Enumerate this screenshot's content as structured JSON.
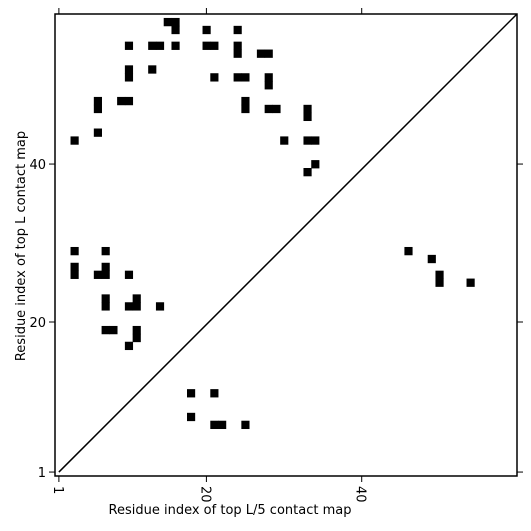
{
  "chart_data": {
    "type": "heatmap",
    "title": "",
    "xlabel": "Residue index of top L/5 contact map",
    "ylabel": "Residue index of top L contact map",
    "xlim": [
      0.5,
      60
    ],
    "ylim": [
      0.5,
      59
    ],
    "x_ticks": [
      1,
      20,
      40
    ],
    "y_ticks": [
      1,
      20,
      40
    ],
    "x_tick_labels": [
      "1",
      "20",
      "40"
    ],
    "y_tick_labels": [
      "1",
      "20",
      "40"
    ],
    "x_tick_rotation": -90,
    "diagonal": true,
    "grid": false,
    "legend": "none",
    "cell_color": "#000000",
    "background": "#ffffff",
    "upper_left_contacts": [
      [
        15,
        58
      ],
      [
        16,
        58
      ],
      [
        16,
        57
      ],
      [
        24,
        57
      ],
      [
        20,
        57
      ],
      [
        10,
        55
      ],
      [
        13,
        55
      ],
      [
        14,
        55
      ],
      [
        16,
        55
      ],
      [
        20,
        55
      ],
      [
        21,
        55
      ],
      [
        24,
        55
      ],
      [
        24,
        54
      ],
      [
        27,
        54
      ],
      [
        28,
        54
      ],
      [
        10,
        52
      ],
      [
        10,
        51
      ],
      [
        13,
        52
      ],
      [
        21,
        51
      ],
      [
        24,
        51
      ],
      [
        25,
        51
      ],
      [
        28,
        51
      ],
      [
        28,
        50
      ],
      [
        6,
        48
      ],
      [
        6,
        47
      ],
      [
        9,
        48
      ],
      [
        10,
        48
      ],
      [
        25,
        48
      ],
      [
        25,
        47
      ],
      [
        28,
        47
      ],
      [
        29,
        47
      ],
      [
        33,
        47
      ],
      [
        33,
        46
      ],
      [
        6,
        44
      ],
      [
        3,
        43
      ],
      [
        30,
        43
      ],
      [
        33,
        43
      ],
      [
        34,
        43
      ],
      [
        34,
        40
      ],
      [
        33,
        39
      ],
      [
        3,
        29
      ],
      [
        7,
        29
      ],
      [
        3,
        27
      ],
      [
        3,
        26
      ],
      [
        7,
        27
      ],
      [
        7,
        26
      ],
      [
        6,
        26
      ],
      [
        10,
        26
      ],
      [
        7,
        23
      ],
      [
        7,
        22
      ],
      [
        10,
        22
      ],
      [
        11,
        22
      ],
      [
        11,
        23
      ],
      [
        14,
        22
      ],
      [
        7,
        19
      ],
      [
        8,
        19
      ],
      [
        11,
        19
      ],
      [
        11,
        18
      ],
      [
        10,
        17
      ]
    ],
    "lower_right_contacts": [
      [
        18,
        11
      ],
      [
        21,
        11
      ],
      [
        18,
        8
      ],
      [
        21,
        7
      ],
      [
        22,
        7
      ],
      [
        25,
        7
      ],
      [
        46,
        29
      ],
      [
        49,
        28
      ],
      [
        50,
        26
      ],
      [
        50,
        25
      ],
      [
        54,
        25
      ]
    ]
  }
}
